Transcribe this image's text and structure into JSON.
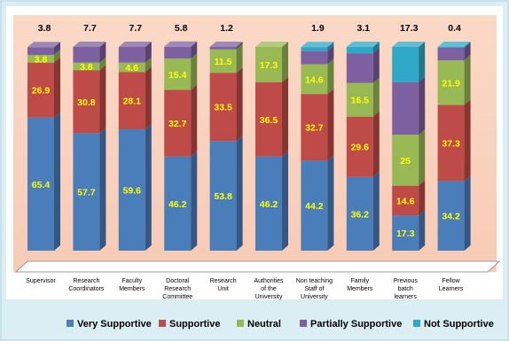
{
  "chart_data": {
    "type": "bar",
    "stacked": true,
    "style": "3d",
    "categories": [
      "Supervisor",
      "Research\nCoordinators",
      "Faculty\nMembers",
      "Doctoral\nResearch\nCommittee",
      "Research\nUnit",
      "Authorities\nof the\nUniversity",
      "Non teaching\nStaff of\nUniversity",
      "Family\nMembers",
      "Previous\nbatch\nlearners",
      "Fellow\nLearners"
    ],
    "series": [
      {
        "name": "Very Supportive",
        "color": "#4a7ebb",
        "values": [
          65.4,
          57.7,
          59.6,
          46.2,
          53.8,
          46.2,
          44.2,
          36.2,
          17.3,
          34.2
        ]
      },
      {
        "name": "Supportive",
        "color": "#be4b48",
        "values": [
          26.9,
          30.8,
          28.1,
          32.7,
          33.5,
          36.5,
          32.7,
          29.6,
          14.6,
          37.3
        ]
      },
      {
        "name": "Neutral",
        "color": "#98b954",
        "values": [
          3.8,
          3.8,
          4.6,
          15.4,
          11.5,
          17.3,
          14.6,
          16.5,
          25,
          21.9
        ]
      },
      {
        "name": "Partially Supportive",
        "color": "#7d60a0",
        "values": [
          3.8,
          7.7,
          7.7,
          5.8,
          1.2,
          0,
          6.5,
          14.6,
          25.8,
          6.2
        ]
      },
      {
        "name": "Not Supportive",
        "color": "#2ea8c6",
        "values": [
          0,
          0,
          0,
          0,
          0,
          0,
          1.9,
          3.1,
          17.3,
          0.4
        ]
      }
    ],
    "top_labels": [
      "3.8",
      "7.7",
      "7.7",
      "5.8",
      "1.2",
      "",
      "1.9",
      "3.1",
      "17.3",
      "0.4"
    ],
    "legend_position": "bottom",
    "label_color": "#ffff00",
    "top_label_color": "#000000",
    "grid": false
  }
}
